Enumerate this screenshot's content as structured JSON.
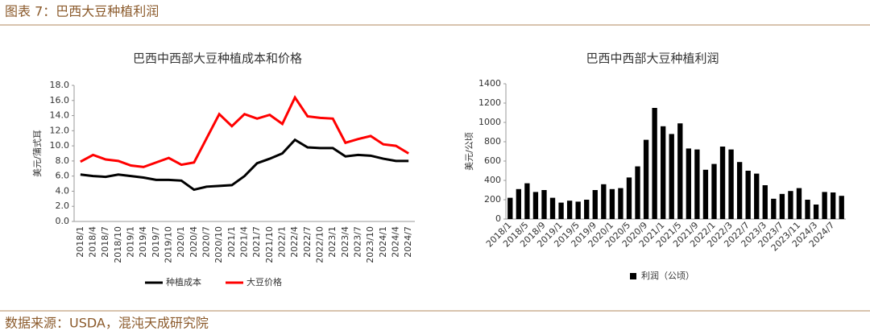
{
  "header": {
    "title": "图表 7：巴西大豆种植利润"
  },
  "chart_data": [
    {
      "type": "line",
      "title": "巴西中西部大豆种植成本和价格",
      "y_label": "美元/蒲式耳",
      "categories": [
        "2018/1",
        "2018/4",
        "2018/7",
        "2018/10",
        "2019/1",
        "2019/4",
        "2019/7",
        "2019/10",
        "2020/1",
        "2020/4",
        "2020/7",
        "2020/10",
        "2021/1",
        "2021/4",
        "2021/7",
        "2021/10",
        "2022/1",
        "2022/4",
        "2022/7",
        "2022/10",
        "2023/1",
        "2023/4",
        "2023/7",
        "2023/10",
        "2024/1",
        "2024/4",
        "2024/7"
      ],
      "series": [
        {
          "name": "种植成本",
          "color": "#000000",
          "values": [
            6.2,
            6.0,
            5.9,
            6.2,
            6.0,
            5.8,
            5.5,
            5.5,
            5.4,
            4.2,
            4.6,
            4.7,
            4.8,
            6.0,
            7.7,
            8.3,
            9.0,
            10.8,
            9.8,
            9.7,
            9.7,
            8.6,
            8.8,
            8.7,
            8.3,
            8.0,
            8.0
          ]
        },
        {
          "name": "大豆价格",
          "color": "#ff0000",
          "values": [
            7.9,
            8.8,
            8.2,
            8.0,
            7.4,
            7.2,
            7.8,
            8.4,
            7.5,
            7.8,
            11.0,
            14.2,
            12.6,
            14.2,
            13.6,
            14.1,
            12.9,
            16.4,
            13.9,
            13.7,
            13.6,
            10.4,
            10.9,
            11.3,
            10.2,
            10.0,
            9.0
          ]
        }
      ],
      "ylim": [
        0,
        18
      ],
      "yticks": [
        {
          "value": 0,
          "label": "0.0"
        },
        {
          "value": 2,
          "label": "2.0"
        },
        {
          "value": 4,
          "label": "4.0"
        },
        {
          "value": 6,
          "label": "6.0"
        },
        {
          "value": 8,
          "label": "8.0"
        },
        {
          "value": 10,
          "label": "10.0"
        },
        {
          "value": 12,
          "label": "12.0"
        },
        {
          "value": 14,
          "label": "14.0"
        },
        {
          "value": 16,
          "label": "16.0"
        },
        {
          "value": 18,
          "label": "18.0"
        }
      ],
      "legend": "bottom"
    },
    {
      "type": "bar",
      "title": "巴西中西部大豆种植利润",
      "y_label": "美元/公顷",
      "categories": [
        "2018/1",
        null,
        "2018/5",
        null,
        "2018/9",
        null,
        "2019/1",
        null,
        "2019/5",
        null,
        "2019/9",
        null,
        "2020/1",
        null,
        "2020/5",
        null,
        "2020/9",
        null,
        "2021/1",
        null,
        "2021/5",
        null,
        "2021/9",
        null,
        "2022/1",
        null,
        "2022/3",
        null,
        "2022/7",
        null,
        "2023/3",
        null,
        "2023/7",
        null,
        "2023/11",
        null,
        "2024/3",
        null,
        "2024/7",
        null
      ],
      "series": [
        {
          "name": "利润（公顷）",
          "color": "#000000",
          "values": [
            220,
            310,
            370,
            280,
            300,
            220,
            170,
            190,
            180,
            200,
            300,
            360,
            310,
            320,
            430,
            545,
            820,
            1150,
            960,
            880,
            990,
            730,
            720,
            510,
            570,
            750,
            720,
            590,
            500,
            470,
            350,
            210,
            260,
            290,
            320,
            200,
            150,
            280,
            275,
            240
          ]
        }
      ],
      "ylim": [
        0,
        1400
      ],
      "yticks": [
        0,
        200,
        400,
        600,
        800,
        1000,
        1200,
        1400
      ],
      "legend": "bottom"
    }
  ],
  "footer": {
    "source": "数据来源：USDA，混沌天成研究院"
  }
}
